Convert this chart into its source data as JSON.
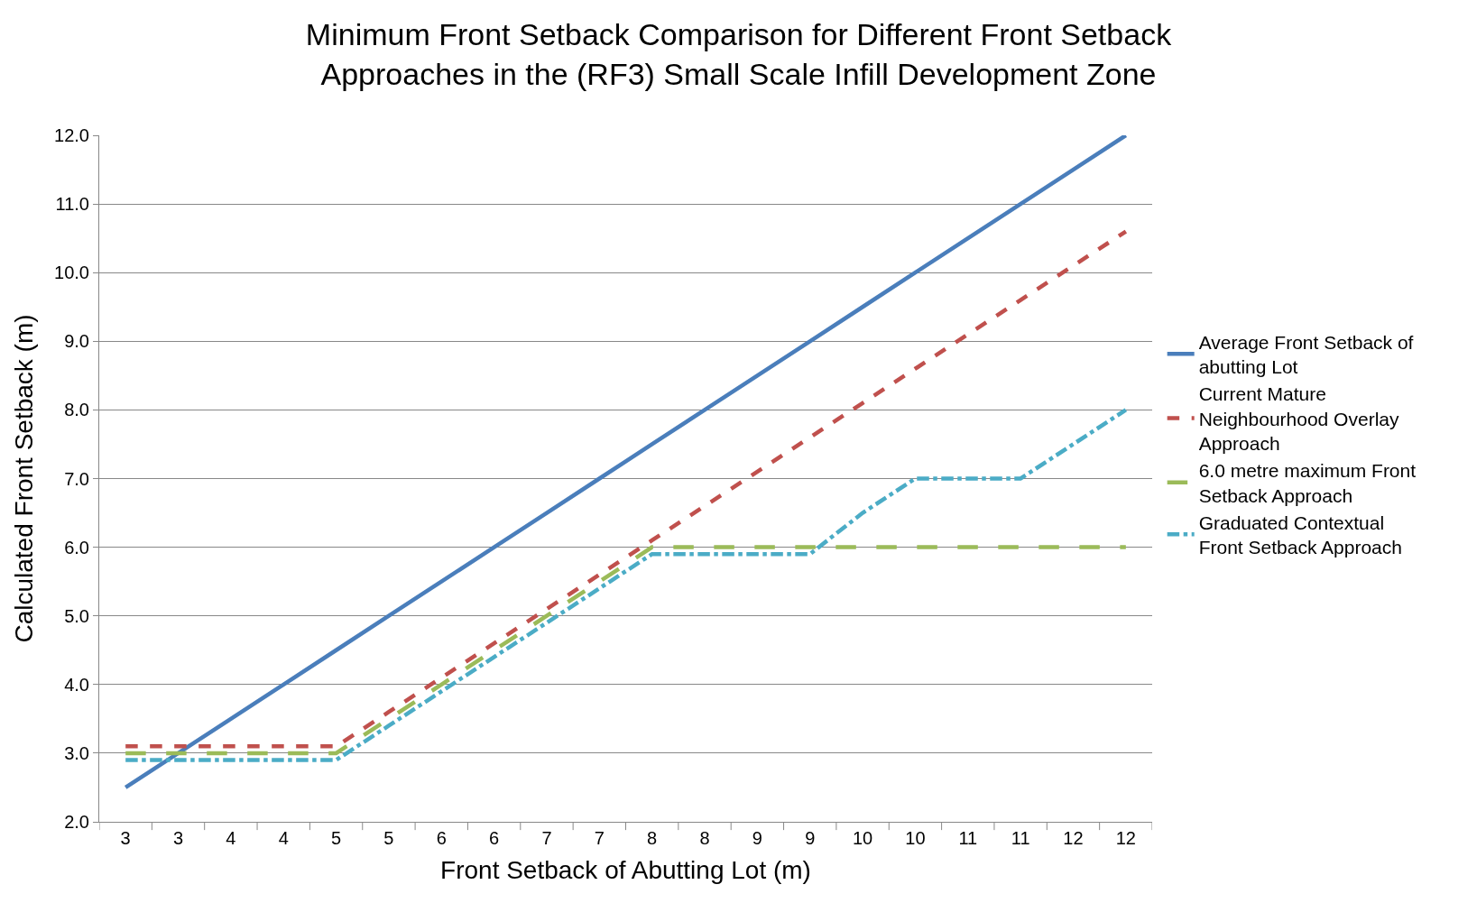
{
  "chart_data": {
    "type": "line",
    "title": "Minimum Front Setback Comparison for Different Front Setback Approaches in the (RF3) Small Scale Infill Development Zone",
    "xlabel": "Front Setback of Abutting Lot (m)",
    "ylabel": "Calculated Front Setback (m)",
    "categories": [
      "3",
      "3",
      "4",
      "4",
      "5",
      "5",
      "6",
      "6",
      "7",
      "7",
      "8",
      "8",
      "9",
      "9",
      "10",
      "10",
      "11",
      "11",
      "12",
      "12"
    ],
    "series": [
      {
        "name": "Average Front Setback of abutting Lot",
        "color": "#4a7ebb",
        "line_style": "solid",
        "values": [
          2.5,
          3.0,
          3.5,
          4.0,
          4.5,
          5.0,
          5.5,
          6.0,
          6.5,
          7.0,
          7.5,
          8.0,
          8.5,
          9.0,
          9.5,
          10.0,
          10.5,
          11.0,
          11.5,
          12.0
        ]
      },
      {
        "name": "Current Mature Neighbourhood Overlay Approach",
        "color": "#c0504d",
        "line_style": "dashed",
        "values": [
          3.1,
          3.1,
          3.1,
          3.1,
          3.1,
          3.6,
          4.1,
          4.6,
          5.1,
          5.6,
          6.1,
          6.6,
          7.1,
          7.6,
          8.1,
          8.6,
          9.1,
          9.6,
          10.1,
          10.6
        ]
      },
      {
        "name": "6.0 metre maximum Front Setback Approach",
        "color": "#9bbb59",
        "line_style": "longdash",
        "values": [
          3.0,
          3.0,
          3.0,
          3.0,
          3.0,
          3.5,
          4.0,
          4.5,
          5.0,
          5.5,
          6.0,
          6.0,
          6.0,
          6.0,
          6.0,
          6.0,
          6.0,
          6.0,
          6.0,
          6.0
        ]
      },
      {
        "name": "Graduated Contextual Front Setback Approach",
        "color": "#4bacc6",
        "line_style": "dashdot",
        "values": [
          2.9,
          2.9,
          2.9,
          2.9,
          2.9,
          3.4,
          3.9,
          4.4,
          4.9,
          5.4,
          5.9,
          5.9,
          5.9,
          5.9,
          6.5,
          7.0,
          7.0,
          7.0,
          7.5,
          8.0
        ]
      }
    ],
    "ylim": [
      2.0,
      12.0
    ],
    "yticks": [
      {
        "value": 2,
        "label": "2.0"
      },
      {
        "value": 3,
        "label": "3.0"
      },
      {
        "value": 4,
        "label": "4.0"
      },
      {
        "value": 5,
        "label": "5.0"
      },
      {
        "value": 6,
        "label": "6.0"
      },
      {
        "value": 7,
        "label": "7.0"
      },
      {
        "value": 8,
        "label": "8.0"
      },
      {
        "value": 9,
        "label": "9.0"
      },
      {
        "value": 10,
        "label": "10.0"
      },
      {
        "value": 11,
        "label": "11.0"
      },
      {
        "value": 12,
        "label": "12.0"
      }
    ],
    "grid": "y",
    "legend": "right",
    "marker": "none"
  }
}
